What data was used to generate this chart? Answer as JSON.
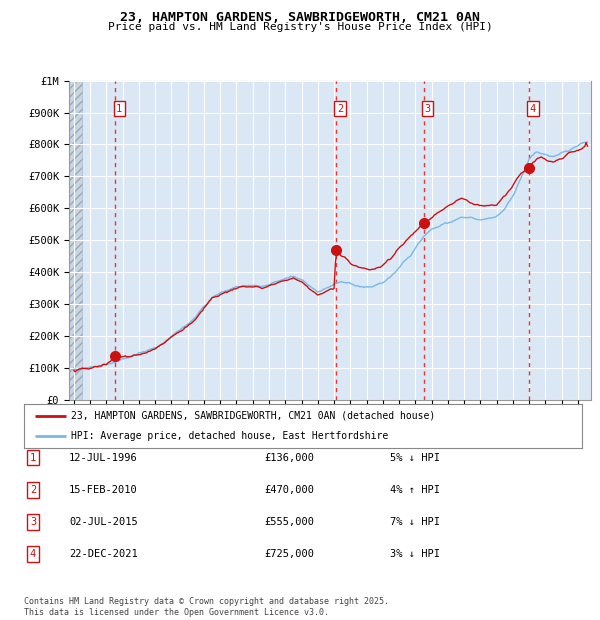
{
  "title_line1": "23, HAMPTON GARDENS, SAWBRIDGEWORTH, CM21 0AN",
  "title_line2": "Price paid vs. HM Land Registry's House Price Index (HPI)",
  "ylim": [
    0,
    1000000
  ],
  "yticks": [
    0,
    100000,
    200000,
    300000,
    400000,
    500000,
    600000,
    700000,
    800000,
    900000,
    1000000
  ],
  "ytick_labels": [
    "£0",
    "£100K",
    "£200K",
    "£300K",
    "£400K",
    "£500K",
    "£600K",
    "£700K",
    "£800K",
    "£900K",
    "£1M"
  ],
  "xlim_start": 1993.7,
  "xlim_end": 2025.8,
  "hpi_color": "#7ab8e8",
  "price_color": "#cc1111",
  "dashed_color": "#ee3333",
  "background_plot": "#dae8f5",
  "grid_color": "#ffffff",
  "transactions": [
    {
      "num": 1,
      "year": 1996.54,
      "price": 136000
    },
    {
      "num": 2,
      "year": 2010.12,
      "price": 470000
    },
    {
      "num": 3,
      "year": 2015.5,
      "price": 555000
    },
    {
      "num": 4,
      "year": 2021.97,
      "price": 725000
    }
  ],
  "legend_line1": "23, HAMPTON GARDENS, SAWBRIDGEWORTH, CM21 0AN (detached house)",
  "legend_line2": "HPI: Average price, detached house, East Hertfordshire",
  "footnote": "Contains HM Land Registry data © Crown copyright and database right 2025.\nThis data is licensed under the Open Government Licence v3.0.",
  "table_rows": [
    {
      "num": 1,
      "date": "12-JUL-1996",
      "price": "£136,000",
      "pct": "5% ↓ HPI"
    },
    {
      "num": 2,
      "date": "15-FEB-2010",
      "price": "£470,000",
      "pct": "4% ↑ HPI"
    },
    {
      "num": 3,
      "date": "02-JUL-2015",
      "price": "£555,000",
      "pct": "7% ↓ HPI"
    },
    {
      "num": 4,
      "date": "22-DEC-2021",
      "price": "£725,000",
      "pct": "3% ↓ HPI"
    }
  ]
}
